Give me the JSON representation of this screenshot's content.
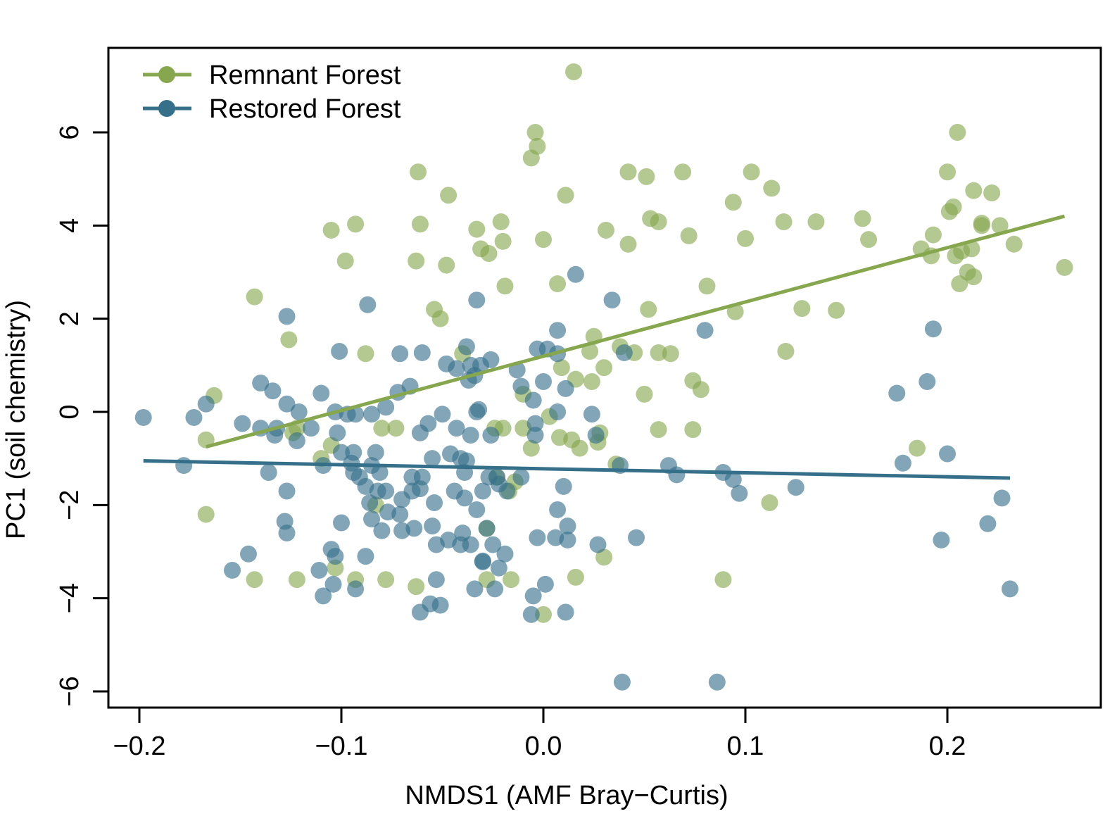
{
  "chart_data": {
    "type": "scatter",
    "xlabel": "NMDS1 (AMF Bray−Curtis)",
    "ylabel": "PC1 (soil chemistry)",
    "xlim": [
      -0.215,
      0.275
    ],
    "ylim": [
      -6.65,
      7.9
    ],
    "xticks": [
      -0.2,
      -0.1,
      0.0,
      0.1,
      0.2
    ],
    "xtick_labels": [
      "−0.2",
      "−0.1",
      "0.0",
      "0.1",
      "0.2"
    ],
    "yticks": [
      -6,
      -4,
      -2,
      0,
      2,
      4,
      6
    ],
    "ytick_labels": [
      "−6",
      "−4",
      "−2",
      "0",
      "2",
      "4",
      "6"
    ],
    "grid": false,
    "legend_position": "top-left",
    "series": [
      {
        "name": "Remnant Forest",
        "color": "#86a74e",
        "trend": [
          [
            -0.167,
            -0.75
          ],
          [
            0.258,
            4.2
          ]
        ],
        "points": [
          [
            0.015,
            7.3
          ],
          [
            -0.004,
            6.0
          ],
          [
            0.205,
            6.0
          ],
          [
            -0.003,
            5.7
          ],
          [
            -0.006,
            5.45
          ],
          [
            -0.062,
            5.15
          ],
          [
            0.042,
            5.15
          ],
          [
            0.069,
            5.15
          ],
          [
            0.103,
            5.15
          ],
          [
            0.2,
            5.15
          ],
          [
            0.051,
            5.05
          ],
          [
            0.113,
            4.8
          ],
          [
            0.213,
            4.75
          ],
          [
            0.222,
            4.7
          ],
          [
            -0.047,
            4.65
          ],
          [
            0.011,
            4.65
          ],
          [
            0.094,
            4.5
          ],
          [
            0.203,
            4.4
          ],
          [
            0.201,
            4.3
          ],
          [
            0.053,
            4.15
          ],
          [
            0.158,
            4.15
          ],
          [
            -0.021,
            4.08
          ],
          [
            0.057,
            4.08
          ],
          [
            0.119,
            4.08
          ],
          [
            0.135,
            4.08
          ],
          [
            0.217,
            4.05
          ],
          [
            -0.093,
            4.03
          ],
          [
            -0.061,
            4.03
          ],
          [
            0.217,
            4.0
          ],
          [
            0.226,
            4.0
          ],
          [
            -0.105,
            3.9
          ],
          [
            -0.033,
            3.92
          ],
          [
            0.031,
            3.9
          ],
          [
            0.193,
            3.8
          ],
          [
            0.072,
            3.78
          ],
          [
            0.0,
            3.7
          ],
          [
            0.1,
            3.72
          ],
          [
            -0.02,
            3.66
          ],
          [
            0.161,
            3.7
          ],
          [
            0.042,
            3.6
          ],
          [
            0.233,
            3.6
          ],
          [
            -0.031,
            3.5
          ],
          [
            0.187,
            3.5
          ],
          [
            0.212,
            3.5
          ],
          [
            0.207,
            3.45
          ],
          [
            -0.027,
            3.4
          ],
          [
            0.192,
            3.35
          ],
          [
            0.204,
            3.35
          ],
          [
            -0.063,
            3.24
          ],
          [
            -0.098,
            3.24
          ],
          [
            -0.048,
            3.15
          ],
          [
            0.258,
            3.1
          ],
          [
            0.21,
            3.0
          ],
          [
            0.213,
            2.9
          ],
          [
            0.206,
            2.75
          ],
          [
            0.007,
            2.75
          ],
          [
            -0.019,
            2.7
          ],
          [
            0.081,
            2.7
          ],
          [
            -0.143,
            2.47
          ],
          [
            0.052,
            2.2
          ],
          [
            0.128,
            2.22
          ],
          [
            0.145,
            2.18
          ],
          [
            -0.054,
            2.2
          ],
          [
            0.095,
            2.15
          ],
          [
            -0.051,
            2.0
          ],
          [
            -0.126,
            1.55
          ],
          [
            0.025,
            1.62
          ],
          [
            0.038,
            1.4
          ],
          [
            0.045,
            1.27
          ],
          [
            0.057,
            1.27
          ],
          [
            0.063,
            1.25
          ],
          [
            0.023,
            1.3
          ],
          [
            0.12,
            1.3
          ],
          [
            -0.088,
            1.25
          ],
          [
            -0.04,
            1.25
          ],
          [
            0.009,
            0.95
          ],
          [
            0.03,
            0.95
          ],
          [
            0.016,
            0.7
          ],
          [
            0.024,
            0.65
          ],
          [
            0.074,
            0.67
          ],
          [
            0.078,
            0.48
          ],
          [
            -0.01,
            0.38
          ],
          [
            0.05,
            0.38
          ],
          [
            -0.163,
            0.35
          ],
          [
            0.003,
            -0.1
          ],
          [
            -0.122,
            -0.35
          ],
          [
            -0.08,
            -0.35
          ],
          [
            -0.073,
            -0.35
          ],
          [
            -0.024,
            -0.35
          ],
          [
            -0.02,
            -0.35
          ],
          [
            -0.01,
            -0.35
          ],
          [
            0.057,
            -0.38
          ],
          [
            0.074,
            -0.38
          ],
          [
            -0.124,
            -0.45
          ],
          [
            0.028,
            -0.45
          ],
          [
            0.008,
            -0.55
          ],
          [
            0.014,
            -0.6
          ],
          [
            -0.167,
            -0.6
          ],
          [
            0.027,
            -0.65
          ],
          [
            -0.105,
            -0.72
          ],
          [
            0.018,
            -0.78
          ],
          [
            -0.006,
            -0.78
          ],
          [
            0.185,
            -0.78
          ],
          [
            -0.11,
            -1.0
          ],
          [
            0.036,
            -1.12
          ],
          [
            -0.023,
            -1.4
          ],
          [
            -0.014,
            -1.5
          ],
          [
            -0.017,
            -1.7
          ],
          [
            -0.083,
            -2.0
          ],
          [
            0.112,
            -1.95
          ],
          [
            -0.167,
            -2.2
          ],
          [
            -0.028,
            -2.5
          ],
          [
            0.03,
            -3.12
          ],
          [
            -0.103,
            -3.35
          ],
          [
            -0.143,
            -3.6
          ],
          [
            -0.122,
            -3.6
          ],
          [
            -0.093,
            -3.6
          ],
          [
            -0.078,
            -3.6
          ],
          [
            -0.028,
            -3.6
          ],
          [
            -0.016,
            -3.6
          ],
          [
            0.016,
            -3.55
          ],
          [
            0.089,
            -3.6
          ],
          [
            -0.063,
            -3.75
          ],
          [
            0.0,
            -4.35
          ]
        ]
      },
      {
        "name": "Restored Forest",
        "color": "#356f8a",
        "trend": [
          [
            -0.198,
            -1.05
          ],
          [
            0.231,
            -1.42
          ]
        ],
        "points": [
          [
            0.016,
            2.95
          ],
          [
            -0.087,
            2.3
          ],
          [
            -0.033,
            2.4
          ],
          [
            0.034,
            2.4
          ],
          [
            -0.127,
            2.05
          ],
          [
            0.007,
            1.75
          ],
          [
            0.08,
            1.75
          ],
          [
            0.193,
            1.78
          ],
          [
            -0.101,
            1.3
          ],
          [
            -0.071,
            1.25
          ],
          [
            -0.06,
            1.27
          ],
          [
            -0.038,
            1.4
          ],
          [
            -0.003,
            1.35
          ],
          [
            0.002,
            1.35
          ],
          [
            0.007,
            1.25
          ],
          [
            0.04,
            1.27
          ],
          [
            -0.048,
            1.03
          ],
          [
            -0.043,
            0.93
          ],
          [
            -0.036,
            1.0
          ],
          [
            -0.034,
            0.78
          ],
          [
            -0.031,
            1.0
          ],
          [
            -0.026,
            1.12
          ],
          [
            -0.013,
            0.9
          ],
          [
            -0.037,
            0.68
          ],
          [
            -0.011,
            0.55
          ],
          [
            0.0,
            0.65
          ],
          [
            0.011,
            0.5
          ],
          [
            0.19,
            0.65
          ],
          [
            -0.14,
            0.62
          ],
          [
            -0.134,
            0.45
          ],
          [
            -0.11,
            0.4
          ],
          [
            -0.066,
            0.55
          ],
          [
            -0.072,
            0.42
          ],
          [
            -0.167,
            0.17
          ],
          [
            -0.127,
            0.17
          ],
          [
            -0.078,
            0.1
          ],
          [
            -0.005,
            0.25
          ],
          [
            0.175,
            0.4
          ],
          [
            -0.198,
            -0.12
          ],
          [
            -0.173,
            -0.12
          ],
          [
            -0.121,
            0.0
          ],
          [
            -0.103,
            0.0
          ],
          [
            -0.097,
            -0.05
          ],
          [
            -0.093,
            -0.05
          ],
          [
            -0.085,
            -0.05
          ],
          [
            -0.05,
            -0.05
          ],
          [
            -0.033,
            0.0
          ],
          [
            -0.032,
            0.05
          ],
          [
            0.007,
            0.0
          ],
          [
            0.024,
            -0.05
          ],
          [
            -0.149,
            -0.25
          ],
          [
            -0.14,
            -0.35
          ],
          [
            -0.132,
            -0.35
          ],
          [
            -0.115,
            -0.35
          ],
          [
            -0.057,
            -0.25
          ],
          [
            -0.043,
            -0.35
          ],
          [
            -0.004,
            -0.25
          ],
          [
            -0.133,
            -0.5
          ],
          [
            -0.102,
            -0.45
          ],
          [
            -0.061,
            -0.45
          ],
          [
            -0.036,
            -0.5
          ],
          [
            -0.026,
            -0.5
          ],
          [
            -0.004,
            -0.5
          ],
          [
            -0.122,
            -0.62
          ],
          [
            0.026,
            -0.5
          ],
          [
            -0.1,
            -0.87
          ],
          [
            -0.094,
            -0.87
          ],
          [
            -0.083,
            -0.87
          ],
          [
            -0.046,
            -0.9
          ],
          [
            -0.055,
            -1.0
          ],
          [
            -0.041,
            -1.0
          ],
          [
            -0.038,
            -1.05
          ],
          [
            -0.109,
            -1.15
          ],
          [
            -0.095,
            -1.1
          ],
          [
            -0.085,
            -1.15
          ],
          [
            -0.081,
            -1.3
          ],
          [
            -0.178,
            -1.15
          ],
          [
            -0.136,
            -1.3
          ],
          [
            -0.06,
            -1.4
          ],
          [
            -0.039,
            -1.3
          ],
          [
            -0.094,
            -1.3
          ],
          [
            -0.091,
            -1.4
          ],
          [
            -0.065,
            -1.4
          ],
          [
            -0.027,
            -1.4
          ],
          [
            -0.023,
            -1.4
          ],
          [
            -0.011,
            -1.4
          ],
          [
            0.038,
            -1.15
          ],
          [
            0.062,
            -1.15
          ],
          [
            0.066,
            -1.35
          ],
          [
            0.089,
            -1.3
          ],
          [
            0.094,
            -1.45
          ],
          [
            0.178,
            -1.1
          ],
          [
            0.2,
            -0.9
          ],
          [
            -0.127,
            -1.7
          ],
          [
            -0.088,
            -1.6
          ],
          [
            -0.082,
            -1.7
          ],
          [
            -0.078,
            -1.7
          ],
          [
            -0.061,
            -1.65
          ],
          [
            -0.065,
            -1.7
          ],
          [
            -0.044,
            -1.7
          ],
          [
            -0.03,
            -1.7
          ],
          [
            -0.022,
            -1.55
          ],
          [
            0.01,
            -1.6
          ],
          [
            0.097,
            -1.75
          ],
          [
            0.125,
            -1.62
          ],
          [
            -0.086,
            -1.95
          ],
          [
            -0.07,
            -1.88
          ],
          [
            -0.054,
            -1.95
          ],
          [
            -0.039,
            -1.85
          ],
          [
            -0.033,
            -2.1
          ],
          [
            -0.018,
            -1.7
          ],
          [
            0.007,
            -2.1
          ],
          [
            0.227,
            -1.85
          ],
          [
            -0.128,
            -2.35
          ],
          [
            -0.1,
            -2.38
          ],
          [
            -0.085,
            -2.3
          ],
          [
            -0.077,
            -2.15
          ],
          [
            -0.071,
            -2.2
          ],
          [
            -0.064,
            -2.5
          ],
          [
            -0.055,
            -2.45
          ],
          [
            -0.028,
            -2.5
          ],
          [
            -0.127,
            -2.6
          ],
          [
            -0.08,
            -2.55
          ],
          [
            -0.07,
            -2.55
          ],
          [
            -0.04,
            -2.6
          ],
          [
            -0.047,
            -2.75
          ],
          [
            -0.041,
            -2.85
          ],
          [
            -0.036,
            -2.85
          ],
          [
            -0.025,
            -2.85
          ],
          [
            -0.053,
            -2.85
          ],
          [
            -0.003,
            -2.7
          ],
          [
            0.006,
            -2.7
          ],
          [
            0.012,
            -2.45
          ],
          [
            0.012,
            -2.75
          ],
          [
            0.027,
            -2.85
          ],
          [
            0.046,
            -2.7
          ],
          [
            0.22,
            -2.4
          ],
          [
            0.197,
            -2.75
          ],
          [
            -0.146,
            -3.05
          ],
          [
            -0.105,
            -2.95
          ],
          [
            -0.103,
            -3.1
          ],
          [
            -0.088,
            -3.1
          ],
          [
            -0.03,
            -3.2
          ],
          [
            -0.03,
            -3.22
          ],
          [
            -0.019,
            -3.05
          ],
          [
            -0.022,
            -3.35
          ],
          [
            -0.154,
            -3.4
          ],
          [
            -0.111,
            -3.4
          ],
          [
            -0.104,
            -3.7
          ],
          [
            -0.093,
            -3.8
          ],
          [
            -0.053,
            -3.6
          ],
          [
            -0.034,
            -3.8
          ],
          [
            -0.024,
            -3.8
          ],
          [
            -0.109,
            -3.95
          ],
          [
            0.001,
            -3.7
          ],
          [
            -0.005,
            -3.95
          ],
          [
            0.231,
            -3.8
          ],
          [
            -0.056,
            -4.12
          ],
          [
            -0.051,
            -4.15
          ],
          [
            -0.061,
            -4.3
          ],
          [
            -0.006,
            -4.35
          ],
          [
            0.011,
            -4.3
          ],
          [
            0.039,
            -5.8
          ],
          [
            0.086,
            -5.8
          ]
        ]
      }
    ]
  }
}
